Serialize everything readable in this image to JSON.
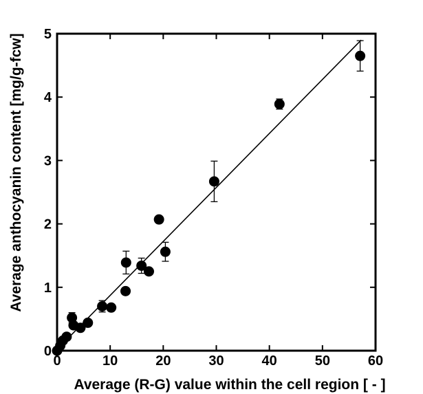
{
  "chart_data": {
    "type": "scatter",
    "title": "",
    "xlabel": "Average (R-G) value within the cell region [ - ]",
    "ylabel": "Average anthocyanin content [mg/g-fcw]",
    "xlim": [
      0,
      60
    ],
    "ylim": [
      0,
      5
    ],
    "xticks": [
      {
        "value": 0,
        "label": "0"
      },
      {
        "value": 10,
        "label": "10"
      },
      {
        "value": 20,
        "label": "20"
      },
      {
        "value": 30,
        "label": "30"
      },
      {
        "value": 40,
        "label": "40"
      },
      {
        "value": 50,
        "label": "50"
      },
      {
        "value": 60,
        "label": "60"
      }
    ],
    "yticks": [
      {
        "value": 0,
        "label": "0"
      },
      {
        "value": 1,
        "label": "1"
      },
      {
        "value": 2,
        "label": "2"
      },
      {
        "value": 3,
        "label": "3"
      },
      {
        "value": 4,
        "label": "4"
      },
      {
        "value": 5,
        "label": "5"
      }
    ],
    "grid": false,
    "legend": "none",
    "points": [
      {
        "x": 0.0,
        "y": 0.0,
        "err": 0
      },
      {
        "x": 0.6,
        "y": 0.08,
        "err": 0
      },
      {
        "x": 1.1,
        "y": 0.16,
        "err": 0
      },
      {
        "x": 1.8,
        "y": 0.22,
        "err": 0
      },
      {
        "x": 2.8,
        "y": 0.52,
        "err": 0.08
      },
      {
        "x": 3.1,
        "y": 0.4,
        "err": 0
      },
      {
        "x": 4.4,
        "y": 0.36,
        "err": 0
      },
      {
        "x": 5.8,
        "y": 0.44,
        "err": 0
      },
      {
        "x": 8.5,
        "y": 0.7,
        "err": 0.09
      },
      {
        "x": 10.2,
        "y": 0.68,
        "err": 0
      },
      {
        "x": 12.9,
        "y": 0.94,
        "err": 0
      },
      {
        "x": 13.0,
        "y": 1.39,
        "err": 0.18
      },
      {
        "x": 15.9,
        "y": 1.34,
        "err": 0.12
      },
      {
        "x": 17.3,
        "y": 1.25,
        "err": 0
      },
      {
        "x": 19.2,
        "y": 2.07,
        "err": 0
      },
      {
        "x": 20.4,
        "y": 1.56,
        "err": 0.15
      },
      {
        "x": 29.6,
        "y": 2.67,
        "err": 0.32
      },
      {
        "x": 41.9,
        "y": 3.89,
        "err": 0.08
      },
      {
        "x": 57.1,
        "y": 4.65,
        "err": 0.24
      }
    ],
    "fit_line": {
      "x": [
        0,
        57.3
      ],
      "y": [
        0.02,
        4.9
      ]
    },
    "colors": {
      "marker": "#000000",
      "line": "#000000",
      "axes": "#000000"
    }
  }
}
